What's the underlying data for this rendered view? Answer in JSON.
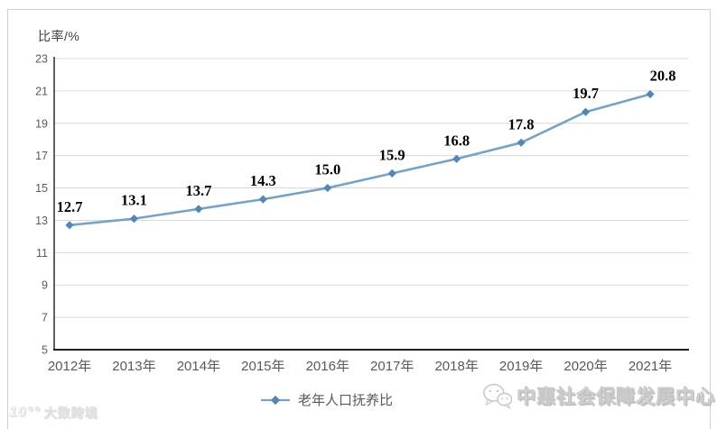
{
  "chart_data": {
    "type": "line",
    "title": "",
    "xlabel": "",
    "ylabel": "比率/%",
    "categories": [
      "2012年",
      "2013年",
      "2014年",
      "2015年",
      "2016年",
      "2017年",
      "2018年",
      "2019年",
      "2020年",
      "2021年"
    ],
    "series": [
      {
        "name": "老年人口抚养比",
        "values": [
          12.7,
          13.1,
          13.7,
          14.3,
          15.0,
          15.9,
          16.8,
          17.8,
          19.7,
          20.8
        ],
        "labels": [
          "12.7",
          "13.1",
          "13.7",
          "14.3",
          "15.0",
          "15.9",
          "16.8",
          "17.8",
          "19.7",
          "20.8"
        ]
      }
    ],
    "ylim": [
      5,
      23
    ],
    "yticks": [
      5,
      7,
      9,
      11,
      13,
      15,
      17,
      19,
      21,
      23
    ],
    "grid": true,
    "legend_position": "bottom",
    "colors": {
      "line": "#76a2c6",
      "marker": "#5585b5",
      "grid": "#d9d9d9",
      "axis": "#1f1f1f",
      "tick_label": "#595959",
      "data_label": "#000000"
    }
  },
  "legend": {
    "label": "老年人口抚养比"
  },
  "watermarks": {
    "left": {
      "icon": "dashu-logo-icon",
      "logo_text": "10°°",
      "text": "大数跨境"
    },
    "right": {
      "icon": "wechat-icon",
      "text": "中惠社会保障发展中心"
    }
  }
}
